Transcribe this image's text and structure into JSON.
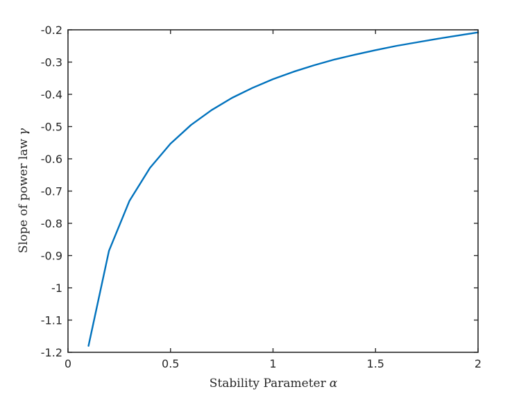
{
  "chart_data": {
    "type": "line",
    "title": "",
    "xlabel": "Stability Parameter",
    "xlabel_symbol": "α",
    "ylabel": "Slope of power law",
    "ylabel_symbol": "γ",
    "xlim": [
      0,
      2
    ],
    "ylim": [
      -1.2,
      -0.2
    ],
    "xticks": [
      0,
      0.5,
      1,
      1.5,
      2
    ],
    "xtick_labels": [
      "0",
      "0.5",
      "1",
      "1.5",
      "2"
    ],
    "yticks": [
      -1.2,
      -1.1,
      -1,
      -0.9,
      -0.8,
      -0.7,
      -0.6,
      -0.5,
      -0.4,
      -0.3,
      -0.2
    ],
    "ytick_labels": [
      "-1.2",
      "-1.1",
      "-1",
      "-0.9",
      "-0.8",
      "-0.7",
      "-0.6",
      "-0.5",
      "-0.4",
      "-0.3",
      "-0.2"
    ],
    "grid": false,
    "series": [
      {
        "color": "#0072bd",
        "x": [
          0.1,
          0.2,
          0.3,
          0.4,
          0.5,
          0.6,
          0.7,
          0.8,
          0.9,
          1.0,
          1.1,
          1.2,
          1.3,
          1.4,
          1.5,
          1.6,
          1.7,
          1.8,
          1.9,
          2.0
        ],
        "y": [
          -1.18,
          -0.885,
          -0.73,
          -0.628,
          -0.553,
          -0.495,
          -0.449,
          -0.411,
          -0.38,
          -0.353,
          -0.33,
          -0.31,
          -0.292,
          -0.277,
          -0.263,
          -0.25,
          -0.239,
          -0.228,
          -0.218,
          -0.208
        ]
      }
    ]
  }
}
